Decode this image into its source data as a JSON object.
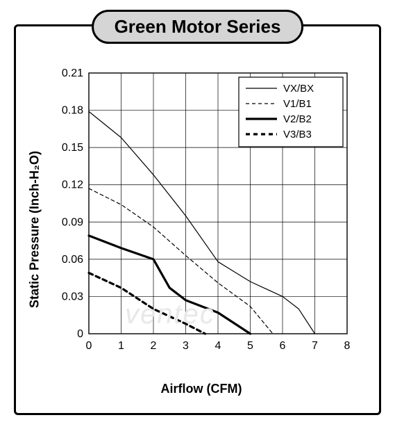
{
  "title": "Green Motor Series",
  "watermark": "ventec",
  "chart": {
    "type": "line",
    "xlabel": "Airflow (CFM)",
    "ylabel": "Static Pressure (Inch-H₂O)",
    "xlim": [
      0,
      8
    ],
    "ylim": [
      0,
      0.21
    ],
    "xtick_step": 1,
    "yticks": [
      0,
      0.03,
      0.06,
      0.09,
      0.12,
      0.15,
      0.18,
      0.21
    ],
    "ytick_labels": [
      "0",
      "0.03",
      "0.06",
      "0.09",
      "0.12",
      "0.15",
      "0.18",
      "0.21"
    ],
    "xtick_labels": [
      "0",
      "1",
      "2",
      "3",
      "4",
      "5",
      "6",
      "7",
      "8"
    ],
    "grid_color": "#000000",
    "grid_width": 0.7,
    "background_color": "#ffffff",
    "tick_fontsize": 16,
    "label_fontsize": 18,
    "legend": {
      "position": "top-right",
      "border_color": "#000000",
      "items": [
        "VX/BX",
        "V1/B1",
        "V2/B2",
        "V3/B3"
      ]
    },
    "series": [
      {
        "name": "VX/BX",
        "color": "#000000",
        "line_width": 1.2,
        "dash": "none",
        "points": [
          [
            0,
            0.179
          ],
          [
            1,
            0.158
          ],
          [
            2,
            0.128
          ],
          [
            3,
            0.095
          ],
          [
            4,
            0.058
          ],
          [
            4.5,
            0.05
          ],
          [
            5,
            0.042
          ],
          [
            6,
            0.03
          ],
          [
            6.5,
            0.02
          ],
          [
            7,
            0.0
          ]
        ]
      },
      {
        "name": "V1/B1",
        "color": "#000000",
        "line_width": 1.2,
        "dash": "5,4",
        "points": [
          [
            0,
            0.117
          ],
          [
            1,
            0.104
          ],
          [
            2,
            0.086
          ],
          [
            3,
            0.063
          ],
          [
            4,
            0.041
          ],
          [
            5,
            0.022
          ],
          [
            5.7,
            0.0
          ]
        ]
      },
      {
        "name": "V2/B2",
        "color": "#000000",
        "line_width": 3.2,
        "dash": "none",
        "points": [
          [
            0,
            0.079
          ],
          [
            1,
            0.069
          ],
          [
            2,
            0.06
          ],
          [
            2.5,
            0.037
          ],
          [
            3,
            0.027
          ],
          [
            4,
            0.017
          ],
          [
            5,
            0.0
          ]
        ]
      },
      {
        "name": "V3/B3",
        "color": "#000000",
        "line_width": 3.2,
        "dash": "6,5",
        "points": [
          [
            0,
            0.049
          ],
          [
            1,
            0.037
          ],
          [
            2,
            0.02
          ],
          [
            3,
            0.008
          ],
          [
            3.6,
            0.0
          ]
        ]
      }
    ]
  }
}
